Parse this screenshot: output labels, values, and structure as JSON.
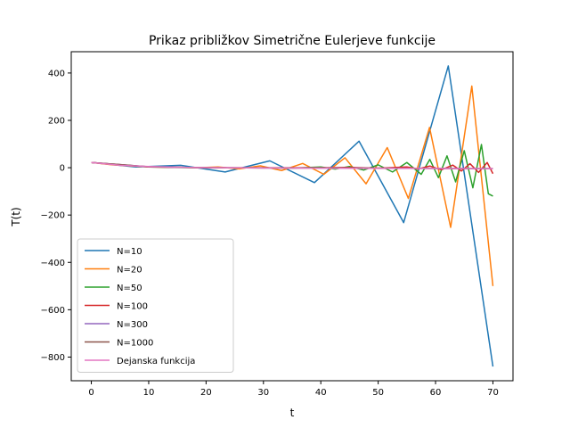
{
  "chart_data": {
    "type": "line",
    "title": "Prikaz približkov Simetrične Eulerjeve funkcije",
    "xlabel": "t",
    "ylabel": "T(t)",
    "xlim": [
      -3.5,
      73.5
    ],
    "ylim": [
      -900,
      490
    ],
    "xticks": [
      0,
      10,
      20,
      30,
      40,
      50,
      60,
      70
    ],
    "yticks": [
      -800,
      -600,
      -400,
      -200,
      0,
      200,
      400
    ],
    "grid": false,
    "legend_position": "lower-left",
    "series": [
      {
        "name": "N=10",
        "color": "#1f77b4",
        "x": [
          0,
          7.78,
          15.56,
          23.33,
          31.11,
          38.89,
          46.67,
          54.44,
          62.22,
          70
        ],
        "y": [
          22,
          3,
          10,
          -18,
          29,
          -63,
          112,
          -232,
          430,
          -840
        ]
      },
      {
        "name": "N=20",
        "color": "#ff7f0e",
        "x": [
          0,
          3.68,
          7.37,
          11.05,
          14.74,
          18.42,
          22.11,
          25.79,
          29.47,
          33.16,
          36.84,
          40.53,
          44.21,
          47.89,
          51.58,
          55.26,
          58.95,
          62.63,
          66.32,
          70
        ],
        "y": [
          22,
          12,
          7,
          3,
          2,
          0,
          3,
          -5,
          8,
          -12,
          18,
          -28,
          42,
          -68,
          85,
          -130,
          170,
          -252,
          345,
          -500
        ]
      },
      {
        "name": "N=50",
        "color": "#2ca02c",
        "x": [
          0,
          10,
          20,
          30,
          35,
          40,
          42.5,
          45,
          47.5,
          50,
          52.5,
          55,
          57.5,
          59,
          60.5,
          62,
          63.5,
          65,
          66.5,
          68,
          69.2,
          70
        ],
        "y": [
          22,
          3,
          -1,
          0,
          -2,
          3,
          -6,
          5,
          -10,
          12,
          -18,
          22,
          -28,
          35,
          -42,
          50,
          -60,
          72,
          -85,
          98,
          -110,
          -120
        ]
      },
      {
        "name": "N=100",
        "color": "#d62728",
        "x": [
          0,
          10,
          20,
          30,
          40,
          45,
          50,
          55,
          57,
          59,
          61,
          63,
          64.5,
          66,
          67.5,
          69,
          70
        ],
        "y": [
          22,
          3,
          0,
          0,
          0,
          1,
          -2,
          3,
          -5,
          7,
          -9,
          11,
          -14,
          17,
          -20,
          22,
          -25
        ]
      },
      {
        "name": "N=300",
        "color": "#9467bd",
        "x": [
          0,
          10,
          20,
          30,
          40,
          50,
          60,
          70
        ],
        "y": [
          22,
          4,
          0,
          -1,
          -1,
          -2,
          -3,
          -4
        ]
      },
      {
        "name": "N=1000",
        "color": "#8c564b",
        "x": [
          0,
          10,
          20,
          30,
          40,
          50,
          60,
          70
        ],
        "y": [
          22,
          4,
          0,
          -1,
          -1,
          -2,
          -3,
          -4
        ]
      },
      {
        "name": "Dejanska funkcija",
        "color": "#e377c2",
        "x": [
          0,
          5,
          10,
          15,
          20,
          30,
          40,
          50,
          60,
          70
        ],
        "y": [
          22,
          10,
          5,
          2,
          0,
          -1,
          -2,
          -3,
          -3,
          -4
        ]
      }
    ]
  }
}
